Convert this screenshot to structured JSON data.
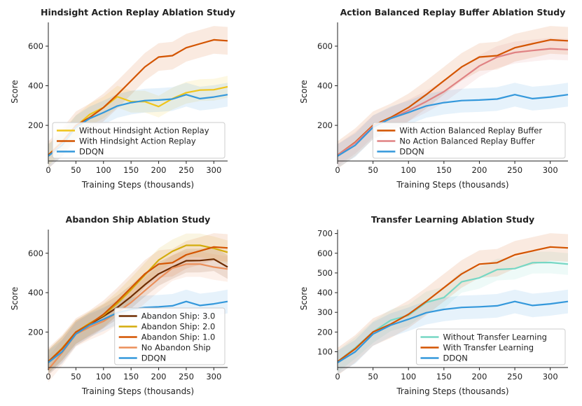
{
  "chart_data": [
    {
      "type": "line",
      "title": "Hindsight Action Replay Ablation Study",
      "xlabel": "Training Steps (thousands)",
      "ylabel": "Score",
      "xlim": [
        0,
        325
      ],
      "ylim": [
        20,
        720
      ],
      "xticks": [
        0,
        50,
        100,
        150,
        200,
        250,
        300
      ],
      "yticks": [
        200,
        400,
        600
      ],
      "legend_position": "lower-right",
      "x": [
        0,
        25,
        50,
        75,
        100,
        125,
        150,
        175,
        200,
        225,
        250,
        275,
        300,
        325
      ],
      "series": [
        {
          "name": "Without Hindsight Action Replay",
          "color": "#f0c419",
          "values": [
            50,
            120,
            195,
            255,
            290,
            345,
            320,
            320,
            295,
            335,
            365,
            378,
            380,
            395
          ],
          "band": 55
        },
        {
          "name": "With Hindsight Action Replay",
          "color": "#d35400",
          "values": [
            50,
            115,
            200,
            240,
            290,
            355,
            425,
            495,
            545,
            552,
            592,
            612,
            632,
            627
          ],
          "band": 70
        },
        {
          "name": "DDQN",
          "color": "#3498db",
          "values": [
            45,
            100,
            190,
            235,
            265,
            298,
            315,
            325,
            328,
            333,
            355,
            335,
            343,
            355
          ],
          "band": 60
        }
      ]
    },
    {
      "type": "line",
      "title": "Action Balanced Replay Buffer Ablation Study",
      "xlabel": "Training Steps (thousands)",
      "ylabel": "Score",
      "xlim": [
        0,
        325
      ],
      "ylim": [
        20,
        720
      ],
      "xticks": [
        0,
        50,
        100,
        150,
        200,
        250,
        300
      ],
      "yticks": [
        200,
        400,
        600
      ],
      "legend_position": "lower-right",
      "x": [
        0,
        25,
        50,
        75,
        100,
        125,
        150,
        175,
        200,
        225,
        250,
        275,
        300,
        325
      ],
      "series": [
        {
          "name": "With Action Balanced Replay Buffer",
          "color": "#d35400",
          "values": [
            50,
            115,
            200,
            240,
            290,
            355,
            425,
            495,
            545,
            552,
            592,
            612,
            632,
            627
          ],
          "band": 70
        },
        {
          "name": "No Action Balanced Replay Buffer",
          "color": "#e08283",
          "values": [
            50,
            112,
            195,
            235,
            275,
            320,
            370,
            435,
            500,
            545,
            568,
            578,
            587,
            583
          ],
          "band": 55
        },
        {
          "name": "DDQN",
          "color": "#3498db",
          "values": [
            45,
            100,
            190,
            235,
            265,
            298,
            315,
            325,
            328,
            333,
            355,
            335,
            343,
            355
          ],
          "band": 60
        }
      ]
    },
    {
      "type": "line",
      "title": "Abandon Ship Ablation Study",
      "xlabel": "Training Steps (thousands)",
      "ylabel": "Score",
      "xlim": [
        0,
        325
      ],
      "ylim": [
        20,
        720
      ],
      "xticks": [
        0,
        50,
        100,
        150,
        200,
        250,
        300
      ],
      "yticks": [
        200,
        400,
        600
      ],
      "legend_position": "lower-right",
      "x": [
        0,
        25,
        50,
        75,
        100,
        125,
        150,
        175,
        200,
        225,
        250,
        275,
        300,
        325
      ],
      "series": [
        {
          "name": "Abandon Ship: 3.0",
          "color": "#6e2c00",
          "values": [
            50,
            115,
            200,
            240,
            280,
            325,
            380,
            440,
            495,
            530,
            562,
            563,
            570,
            530
          ],
          "band": 60
        },
        {
          "name": "Abandon Ship: 2.0",
          "color": "#d4ac0d",
          "values": [
            50,
            118,
            200,
            245,
            285,
            345,
            415,
            490,
            565,
            610,
            640,
            640,
            625,
            605
          ],
          "band": 60
        },
        {
          "name": "Abandon Ship: 1.0",
          "color": "#d35400",
          "values": [
            50,
            115,
            200,
            240,
            290,
            355,
            425,
            495,
            545,
            552,
            592,
            612,
            632,
            627
          ],
          "band": 70
        },
        {
          "name": "No Abandon Ship",
          "color": "#eb8f5a",
          "values": [
            10,
            95,
            190,
            225,
            255,
            300,
            350,
            410,
            470,
            525,
            545,
            545,
            530,
            520
          ],
          "band": 65
        },
        {
          "name": "DDQN",
          "color": "#3498db",
          "values": [
            45,
            100,
            190,
            235,
            265,
            298,
            315,
            325,
            328,
            333,
            355,
            335,
            343,
            355
          ],
          "band": 60
        }
      ]
    },
    {
      "type": "line",
      "title": "Transfer Learning Ablation Study",
      "xlabel": "Training Steps (thousands)",
      "ylabel": "Score",
      "xlim": [
        0,
        325
      ],
      "ylim": [
        20,
        720
      ],
      "xticks": [
        0,
        50,
        100,
        150,
        200,
        250,
        300
      ],
      "yticks": [
        100,
        200,
        300,
        400,
        500,
        600,
        700
      ],
      "legend_position": "lower-right",
      "x": [
        0,
        25,
        50,
        75,
        100,
        125,
        150,
        175,
        200,
        225,
        250,
        275,
        300,
        325
      ],
      "series": [
        {
          "name": "Without Transfer Learning",
          "color": "#76d7c4",
          "values": [
            50,
            120,
            200,
            260,
            285,
            350,
            375,
            455,
            475,
            517,
            522,
            552,
            553,
            545
          ],
          "band": 55
        },
        {
          "name": "With Transfer Learning",
          "color": "#d35400",
          "values": [
            50,
            115,
            200,
            240,
            290,
            355,
            425,
            495,
            545,
            552,
            592,
            612,
            632,
            627
          ],
          "band": 70
        },
        {
          "name": "DDQN",
          "color": "#3498db",
          "values": [
            45,
            100,
            190,
            235,
            265,
            298,
            315,
            325,
            328,
            333,
            355,
            335,
            343,
            355
          ],
          "band": 60
        }
      ]
    }
  ]
}
